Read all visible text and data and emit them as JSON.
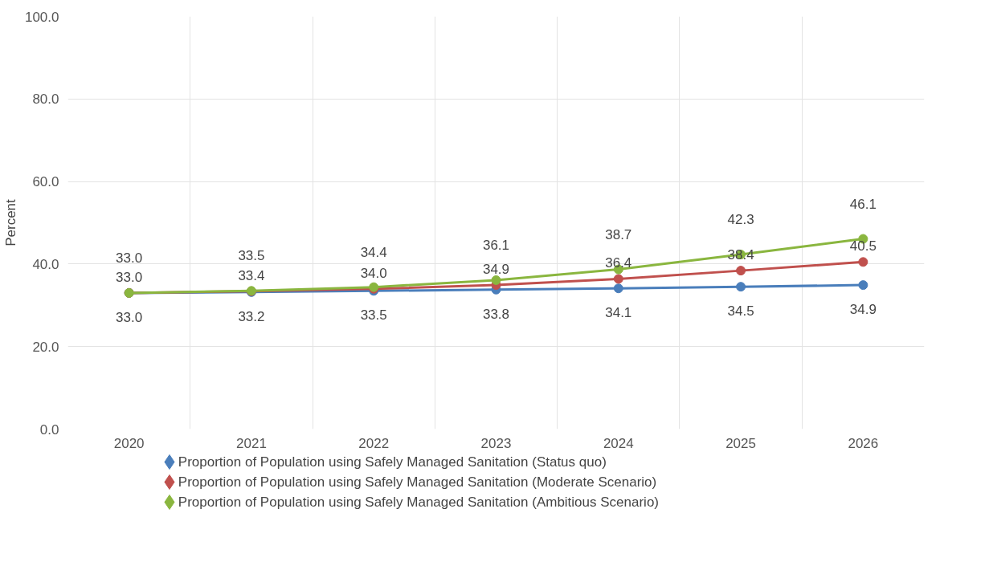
{
  "chart_data": {
    "type": "line",
    "ylabel": "Percent",
    "categories": [
      "2020",
      "2021",
      "2022",
      "2023",
      "2024",
      "2025",
      "2026"
    ],
    "series": [
      {
        "name": "Proportion of Population using Safely Managed Sanitation (Status quo)",
        "color": "#4a7ebb",
        "values": [
          33.0,
          33.2,
          33.5,
          33.8,
          34.1,
          34.5,
          34.9
        ],
        "value_labels": [
          "33.0",
          "33.2",
          "33.5",
          "33.8",
          "34.1",
          "34.5",
          "34.9"
        ]
      },
      {
        "name": "Proportion of Population using Safely Managed Sanitation (Moderate Scenario)",
        "color": "#c0504d",
        "values": [
          33.0,
          33.4,
          34.0,
          34.9,
          36.4,
          38.4,
          40.5
        ],
        "value_labels": [
          "33.0",
          "33.4",
          "34.0",
          "34.9",
          "36.4",
          "38.4",
          "40.5"
        ]
      },
      {
        "name": "Proportion of Population using Safely Managed Sanitation (Ambitious Scenario)",
        "color": "#8ab63f",
        "values": [
          33.0,
          33.5,
          34.4,
          36.1,
          38.7,
          42.3,
          46.1
        ],
        "value_labels": [
          "33.0",
          "33.5",
          "34.4",
          "36.1",
          "38.7",
          "42.3",
          "46.1"
        ]
      }
    ],
    "ylim": [
      0,
      100
    ],
    "yticks": [
      {
        "value": 0,
        "label": "0.0"
      },
      {
        "value": 20,
        "label": "20.0"
      },
      {
        "value": 40,
        "label": "40.0"
      },
      {
        "value": 60,
        "label": "60.0"
      },
      {
        "value": 80,
        "label": "80.0"
      },
      {
        "value": 100,
        "label": "100.0"
      }
    ],
    "grid": true,
    "legend": "bottom",
    "marker": "circle",
    "line_style": "solid"
  }
}
